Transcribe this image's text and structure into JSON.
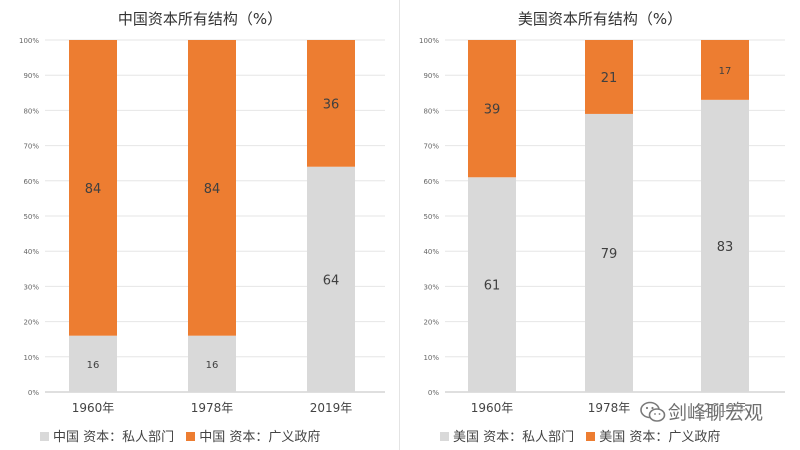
{
  "colors": {
    "private": "#d9d9d9",
    "government": "#ed7d31",
    "grid": "#e6e6e6",
    "axis": "#bfbfbf"
  },
  "watermark": {
    "text": "剑峰聊宏观",
    "icon": "wechat-icon"
  },
  "chart_data": [
    {
      "type": "bar",
      "stacked": true,
      "title": "中国资本所有结构（%）",
      "categories": [
        "1960年",
        "1978年",
        "2019年"
      ],
      "series": [
        {
          "name": "中国 资本：私人部门",
          "values": [
            16,
            16,
            64
          ]
        },
        {
          "name": "中国 资本：广义政府",
          "values": [
            84,
            84,
            36
          ]
        }
      ],
      "ylim": [
        0,
        100
      ],
      "yticks": [
        "0%",
        "10%",
        "20%",
        "30%",
        "40%",
        "50%",
        "60%",
        "70%",
        "80%",
        "90%",
        "100%"
      ],
      "grid": true,
      "legend": "bottom"
    },
    {
      "type": "bar",
      "stacked": true,
      "title": "美国资本所有结构（%）",
      "categories": [
        "1960年",
        "1978年",
        "2019年"
      ],
      "series": [
        {
          "name": "美国 资本：私人部门",
          "values": [
            61,
            79,
            83
          ]
        },
        {
          "name": "美国 资本：广义政府",
          "values": [
            39,
            21,
            17
          ]
        }
      ],
      "ylim": [
        0,
        100
      ],
      "yticks": [
        "0%",
        "10%",
        "20%",
        "30%",
        "40%",
        "50%",
        "60%",
        "70%",
        "80%",
        "90%",
        "100%"
      ],
      "grid": true,
      "legend": "bottom"
    }
  ]
}
